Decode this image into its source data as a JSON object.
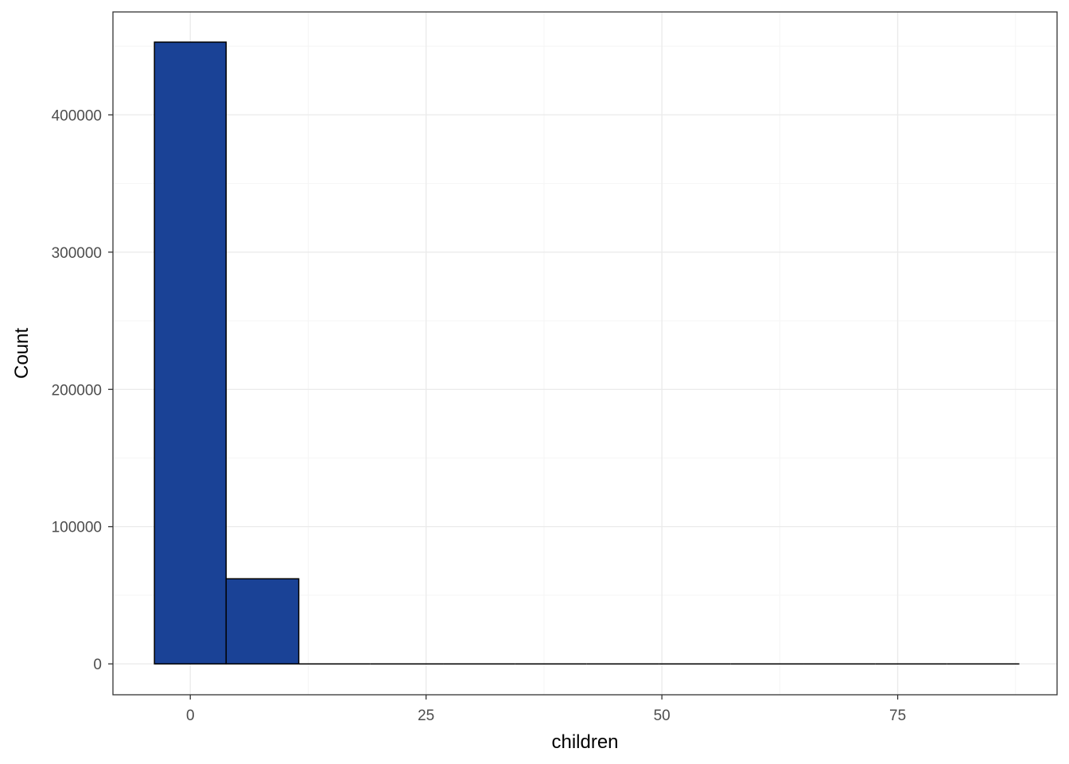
{
  "chart_data": {
    "type": "bar",
    "subtype": "histogram",
    "title": "",
    "xlabel": "children",
    "ylabel": "Count",
    "xlim": [
      -8.2,
      91.9
    ],
    "ylim": [
      -22500,
      475000
    ],
    "x_ticks": [
      0,
      25,
      50,
      75
    ],
    "y_ticks": [
      0,
      100000,
      200000,
      300000,
      400000
    ],
    "bins": [
      {
        "x0": -3.8,
        "x1": 3.8,
        "count": 453000
      },
      {
        "x0": 3.8,
        "x1": 11.5,
        "count": 62000
      },
      {
        "x0": 11.5,
        "x1": 19.1,
        "count": 0
      },
      {
        "x0": 19.1,
        "x1": 26.8,
        "count": 0
      },
      {
        "x0": 26.8,
        "x1": 34.4,
        "count": 0
      },
      {
        "x0": 34.4,
        "x1": 42.0,
        "count": 0
      },
      {
        "x0": 42.0,
        "x1": 49.7,
        "count": 0
      },
      {
        "x0": 49.7,
        "x1": 57.3,
        "count": 0
      },
      {
        "x0": 57.3,
        "x1": 65.0,
        "count": 0
      },
      {
        "x0": 65.0,
        "x1": 72.6,
        "count": 0
      },
      {
        "x0": 72.6,
        "x1": 80.2,
        "count": 0
      },
      {
        "x0": 80.2,
        "x1": 87.9,
        "count": 0
      }
    ],
    "grid": true,
    "legend": "none",
    "colors": {
      "bar_fill": "#1a4296",
      "bar_outline": "#000000",
      "panel_border": "#333333",
      "grid_major": "#ebebeb",
      "grid_minor": "#f5f5f5",
      "tick_label": "#4d4d4d"
    }
  }
}
